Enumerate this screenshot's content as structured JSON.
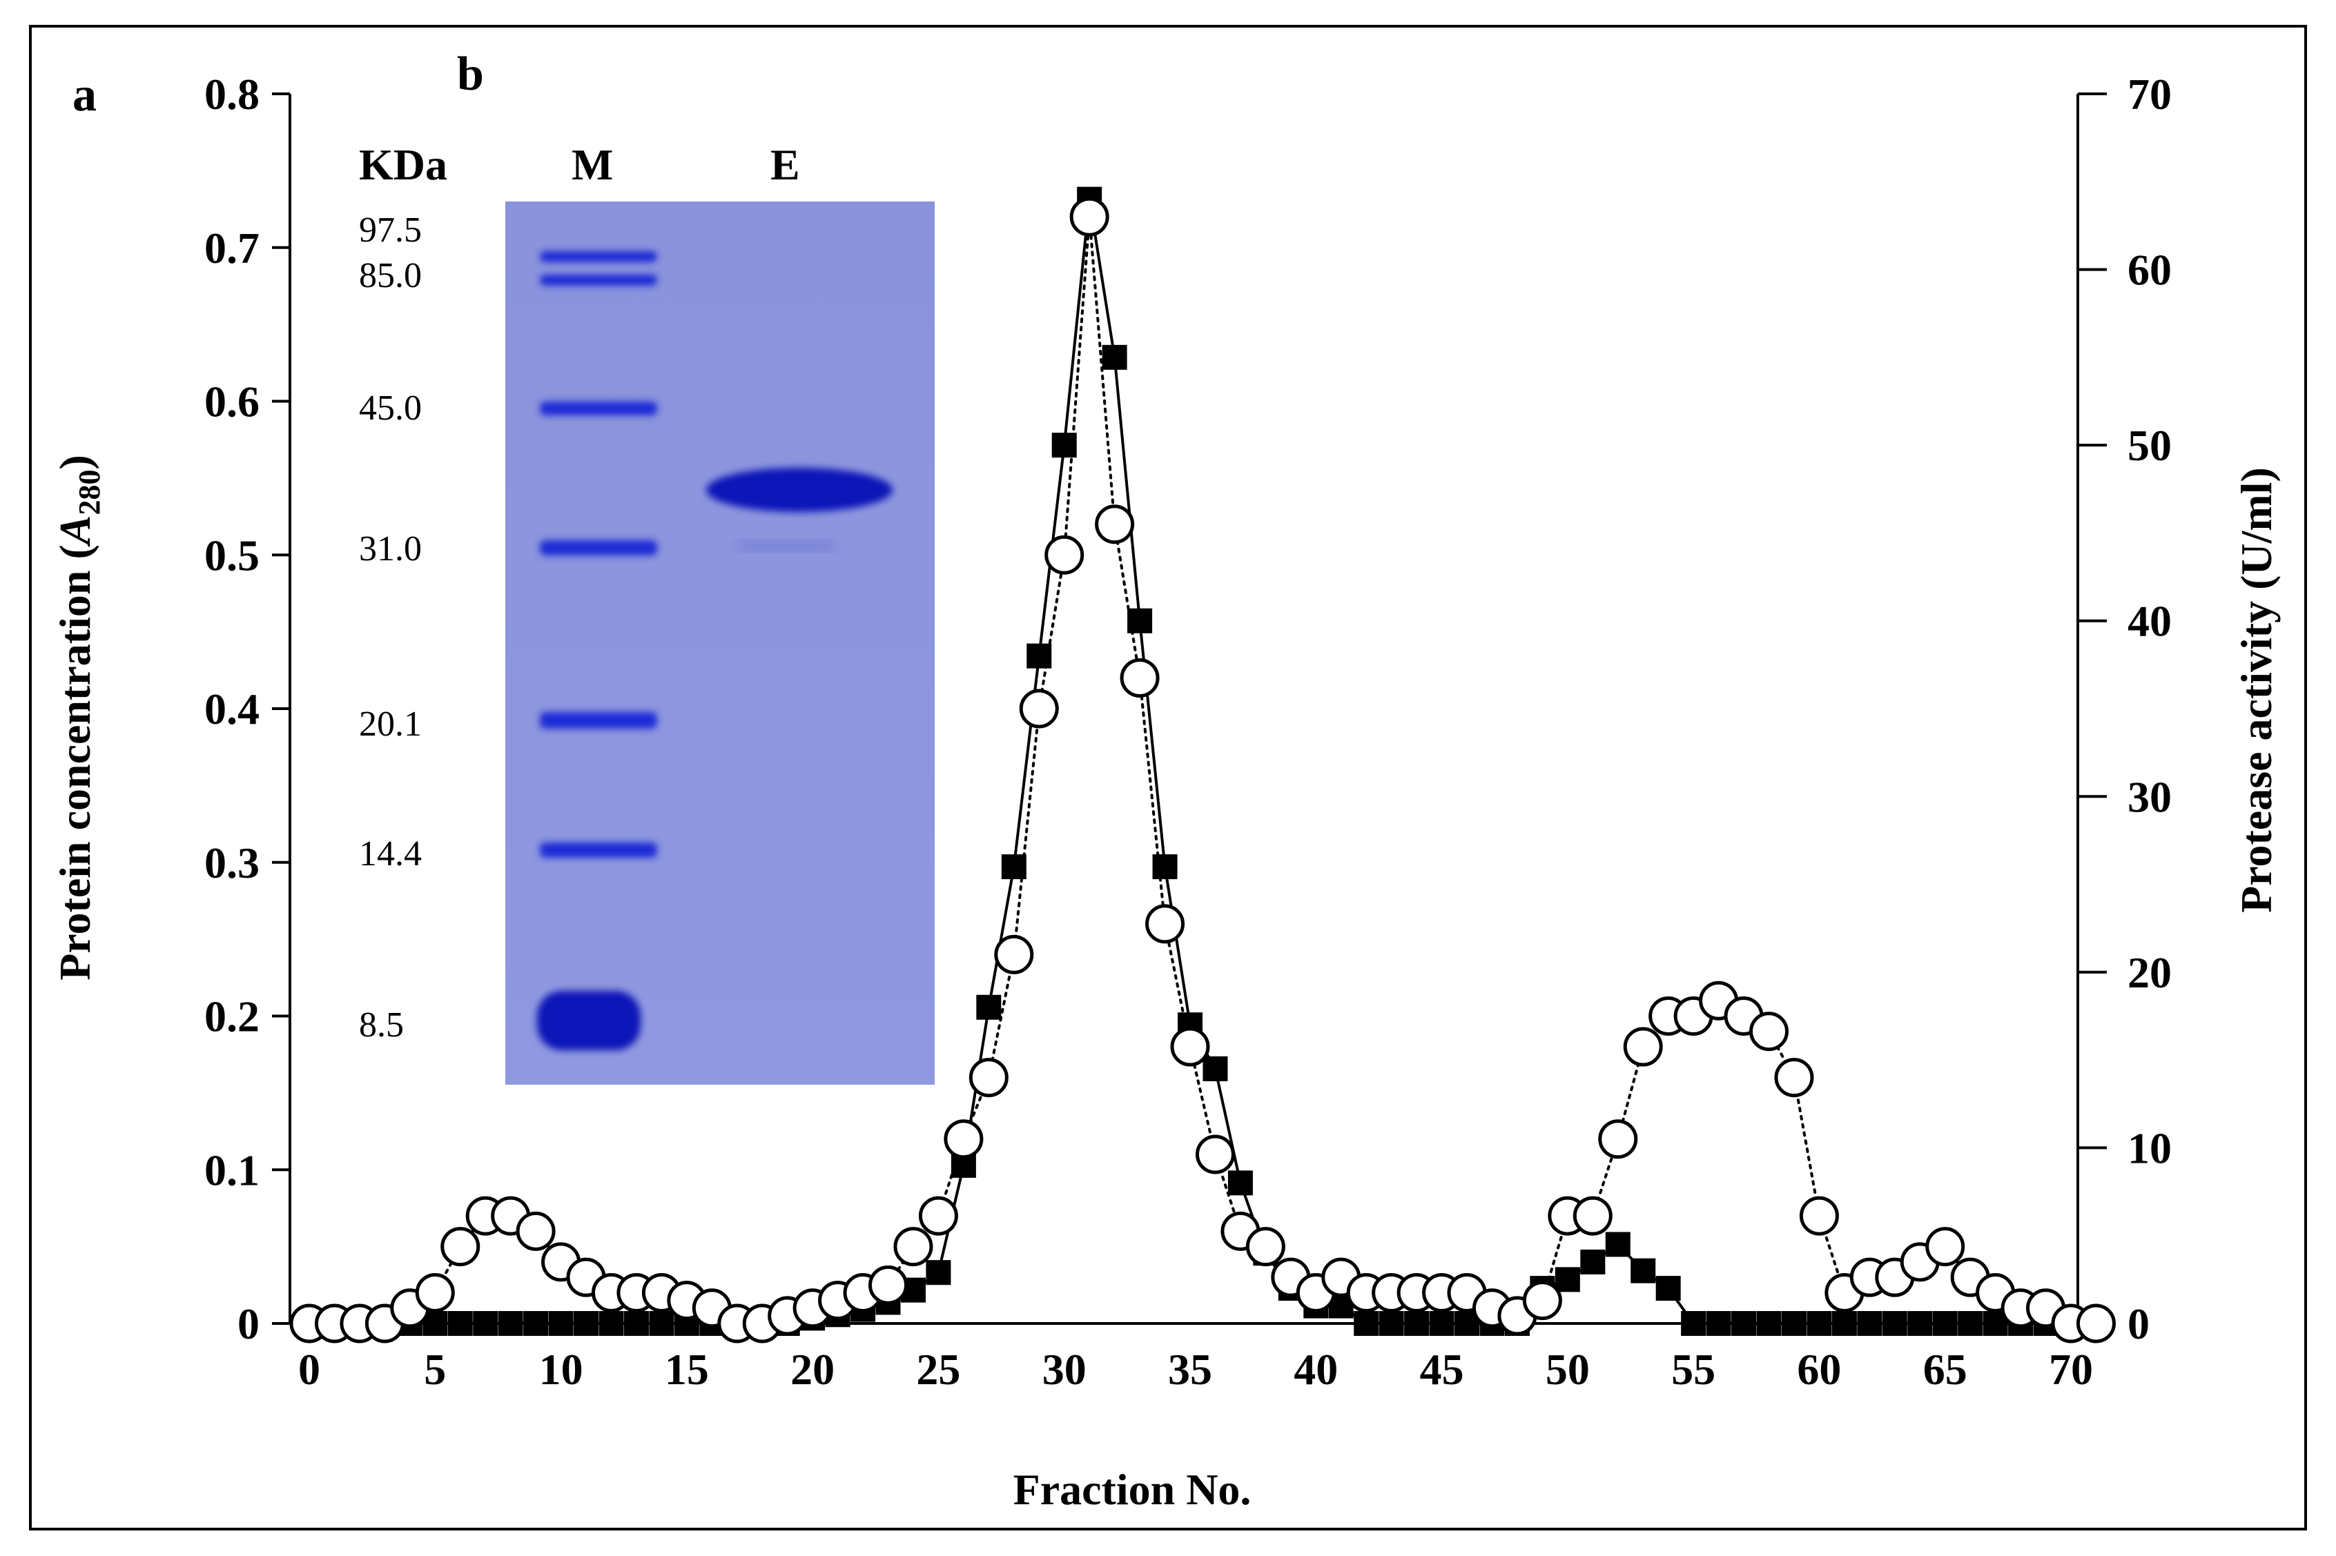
{
  "panels": {
    "a": "a",
    "b": "b"
  },
  "chart_data": {
    "type": "line",
    "xlabel": "Fraction No.",
    "ylabel_left_prefix": "Protein concentration (",
    "ylabel_left_var": "A",
    "ylabel_left_sub": "280",
    "ylabel_left_suffix": ")",
    "ylabel_right": "Protease activity (U/ml)",
    "xlim": [
      0,
      71
    ],
    "ylim_left": [
      0,
      0.8
    ],
    "ylim_right": [
      0,
      70
    ],
    "x_ticks": [
      "0",
      "5",
      "10",
      "15",
      "20",
      "25",
      "30",
      "35",
      "40",
      "45",
      "50",
      "55",
      "60",
      "65",
      "70"
    ],
    "y_left_ticks": [
      "0",
      "0.1",
      "0.2",
      "0.3",
      "0.4",
      "0.5",
      "0.6",
      "0.7",
      "0.8"
    ],
    "y_right_ticks": [
      "0",
      "10",
      "20",
      "30",
      "40",
      "50",
      "60",
      "70"
    ],
    "series": [
      {
        "name": "Protein concentration (A280)",
        "axis": "left",
        "marker": "open-circle",
        "line": "dotted",
        "x": [
          0,
          1,
          2,
          3,
          4,
          5,
          6,
          7,
          8,
          9,
          10,
          11,
          12,
          13,
          14,
          15,
          16,
          17,
          18,
          19,
          20,
          21,
          22,
          23,
          24,
          25,
          26,
          27,
          28,
          29,
          30,
          31,
          32,
          33,
          34,
          35,
          36,
          37,
          38,
          39,
          40,
          41,
          42,
          43,
          44,
          45,
          46,
          47,
          48,
          49,
          50,
          51,
          52,
          53,
          54,
          55,
          56,
          57,
          58,
          59,
          60,
          61,
          62,
          63,
          64,
          65,
          66,
          67,
          68,
          69,
          70,
          71
        ],
        "values": [
          0,
          0,
          0,
          0,
          0.01,
          0.02,
          0.05,
          0.07,
          0.07,
          0.06,
          0.04,
          0.03,
          0.02,
          0.02,
          0.02,
          0.015,
          0.01,
          0,
          0,
          0.005,
          0.01,
          0.015,
          0.02,
          0.025,
          0.05,
          0.07,
          0.12,
          0.16,
          0.24,
          0.4,
          0.5,
          0.72,
          0.52,
          0.42,
          0.26,
          0.18,
          0.11,
          0.06,
          0.05,
          0.03,
          0.02,
          0.03,
          0.02,
          0.02,
          0.02,
          0.02,
          0.02,
          0.01,
          0.005,
          0.015,
          0.07,
          0.07,
          0.12,
          0.18,
          0.2,
          0.2,
          0.21,
          0.2,
          0.19,
          0.16,
          0.07,
          0.02,
          0.03,
          0.03,
          0.04,
          0.05,
          0.03,
          0.02,
          0.01,
          0.01,
          0,
          0
        ]
      },
      {
        "name": "Protease activity (U/ml)",
        "axis": "right",
        "marker": "filled-square",
        "line": "solid",
        "x": [
          0,
          1,
          2,
          3,
          4,
          5,
          6,
          7,
          8,
          9,
          10,
          11,
          12,
          13,
          14,
          15,
          16,
          17,
          18,
          19,
          20,
          21,
          22,
          23,
          24,
          25,
          26,
          27,
          28,
          29,
          30,
          31,
          32,
          33,
          34,
          35,
          36,
          37,
          38,
          39,
          40,
          41,
          42,
          43,
          44,
          45,
          46,
          47,
          48,
          49,
          50,
          51,
          52,
          53,
          54,
          55,
          56,
          57,
          58,
          59,
          60,
          61,
          62,
          63,
          64,
          65,
          66,
          67,
          68,
          69,
          70,
          71
        ],
        "values": [
          0,
          0,
          0,
          0,
          0,
          0,
          0,
          0,
          0,
          0,
          0,
          0,
          0,
          0,
          0,
          0,
          0,
          0,
          0,
          0,
          0.3,
          0.5,
          0.8,
          1.2,
          1.9,
          2.9,
          9,
          18,
          26,
          38,
          50,
          64,
          55,
          40,
          26,
          17,
          14.5,
          8,
          4,
          2,
          1,
          1,
          0,
          0,
          0,
          0,
          0,
          0,
          0,
          2,
          2.5,
          3.5,
          4.5,
          3,
          2,
          0,
          0,
          0,
          0,
          0,
          0,
          0,
          0,
          0,
          0,
          0,
          0,
          0,
          0,
          0,
          0,
          0
        ]
      }
    ]
  },
  "gel": {
    "header_unit": "KDa",
    "lane_marker": "M",
    "lane_enzyme": "E",
    "mw_labels": [
      "97.5",
      "85.0",
      "45.0",
      "31.0",
      "20.1",
      "14.4",
      "8.5"
    ],
    "colors": {
      "background": "#8c95dd",
      "band": "#1a2ad6",
      "band_dark": "#0a18b8"
    }
  }
}
